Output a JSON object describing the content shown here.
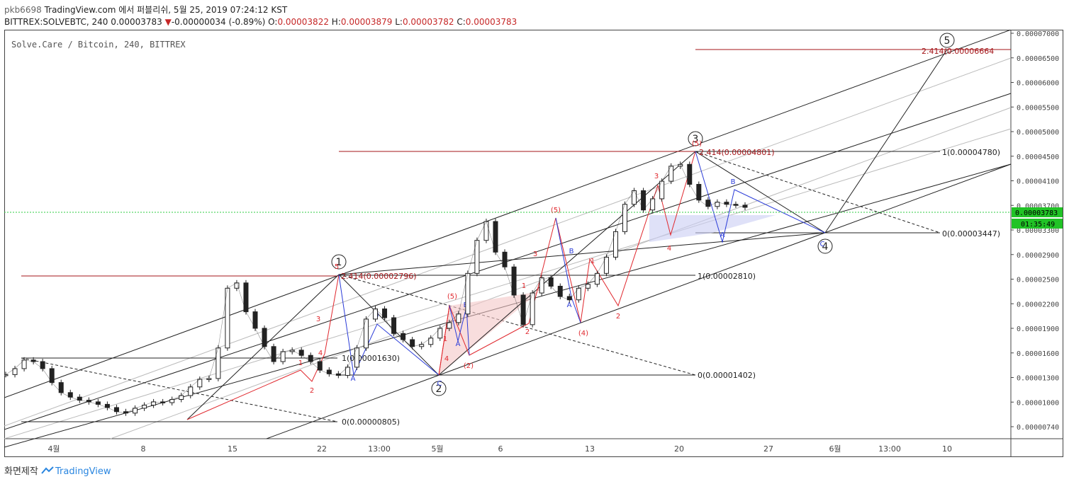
{
  "header": {
    "line1": {
      "user": "pkb6698",
      "site": "TradingView.com",
      "published": "에서 퍼블리쉬, 5월 25, 2019 07:24:12 KST"
    },
    "line2": {
      "symbol": "BITTREX:SOLVEBTC, 240",
      "last": "0.00003783",
      "change_arrow": "▼",
      "change": "-0.00000034 (-0.89%)",
      "o_label": "O:",
      "o": "0.00003822",
      "h_label": "H:",
      "h": "0.00003879",
      "l_label": "L:",
      "l": "0.00003782",
      "c_label": "C:",
      "c": "0.00003783"
    }
  },
  "footer": {
    "label": "화면제작",
    "brand": "TradingView"
  },
  "chart_data": {
    "type": "line",
    "title": "Solve.Care / Bitcoin, 240, BITTREX",
    "xlabel": "",
    "ylabel": "",
    "y_scale": "log",
    "ylim": [
      6.8e-06,
      7.1e-06
    ],
    "x_ticks": [
      "4월",
      "8",
      "15",
      "22",
      "13:00",
      "5월",
      "6",
      "13",
      "20",
      "27",
      "6월",
      "13:00",
      "10"
    ],
    "y_ticks": [
      "0.00007000",
      "0.00006500",
      "0.00006000",
      "0.00005500",
      "0.00005000",
      "0.00004500",
      "0.00004100",
      "0.00003700",
      "0.00003300",
      "0.00002900",
      "0.00002500",
      "0.00002200",
      "0.00001900",
      "0.00001600",
      "0.00001300",
      "0.00001000",
      "0.00000740"
    ],
    "price_tag": "0.00003783",
    "countdown_tag": "01:35:49",
    "series": [
      {
        "values": [
          1.42e-05,
          1.5e-05,
          1.62e-05,
          1.6e-05,
          1.5e-05,
          1.32e-05,
          1.18e-05,
          1.12e-05,
          1.08e-05,
          1.06e-05,
          1.03e-05,
          9.9e-06,
          9.3e-06,
          9.1e-06,
          9.8e-06,
          1.02e-05,
          1.06e-05,
          1.05e-05,
          1.09e-05,
          1.14e-05,
          1.26e-05,
          1.36e-05,
          1.37e-05,
          1.78e-05,
          2.62e-05,
          2.7e-05,
          2.28e-05,
          2.05e-05,
          1.8e-05,
          1.6e-05,
          1.73e-05,
          1.75e-05,
          1.68e-05,
          1.6e-05,
          1.48e-05,
          1.43e-05,
          1.41e-05,
          1.52e-05,
          1.78e-05,
          2.18e-05,
          2.32e-05,
          2.2e-05,
          1.98e-05,
          1.9e-05,
          1.8e-05,
          1.83e-05,
          1.92e-05,
          2.05e-05,
          2.13e-05,
          2.25e-05,
          2.85e-05,
          3.35e-05,
          3.57e-05,
          3.18e-05,
          2.95e-05,
          2.52e-05,
          2.1e-05,
          2.55e-05,
          2.78e-05,
          2.65e-05,
          2.5e-05,
          2.45e-05,
          2.62e-05,
          2.68e-05,
          2.85e-05,
          3.1e-05,
          3.45e-05,
          3.85e-05,
          4.15e-05,
          3.72e-05,
          3.98e-05,
          4.3e-05,
          4.55e-05,
          4.58e-05,
          4.25e-05,
          3.95e-05,
          3.8e-05,
          3.9e-05,
          3.85e-05,
          3.83e-05,
          3.78e-05
        ]
      }
    ],
    "annotations": {
      "fib_levels": [
        "2.414(0.00006664",
        "2.414(0.00004801)",
        "1(0.00004780)",
        "0(0.00003447)",
        "2.414(0.00002796)",
        "1(0.00002810)",
        "1(0.00001630)",
        "0(0.00001402)",
        "0(0.00000805)"
      ],
      "major_waves": [
        "1",
        "2",
        "3",
        "4",
        "5"
      ],
      "minor_labels": [
        "1",
        "2",
        "3",
        "4",
        "5",
        "A",
        "B",
        "C",
        "(1)",
        "(2)",
        "(3)",
        "(4)",
        "(5)"
      ]
    }
  }
}
